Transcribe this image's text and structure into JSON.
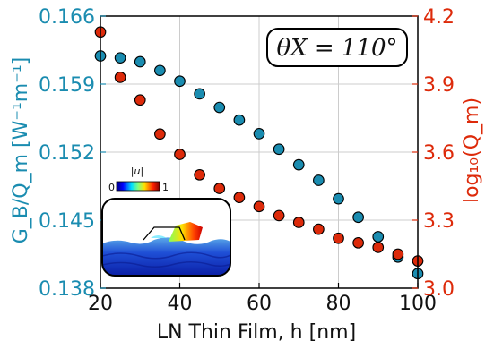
{
  "chart_data": {
    "type": "scatter",
    "xlabel": "LN Thin Film, h [nm]",
    "ylabel_left": "G_B/Q_m [W⁻¹m⁻¹]",
    "ylabel_right": "log₁₀(Q_m)",
    "xlim": [
      20,
      100
    ],
    "ylim_left": [
      0.138,
      0.166
    ],
    "ylim_right": [
      3.0,
      4.2
    ],
    "x_ticks": [
      "20",
      "40",
      "60",
      "80",
      "100"
    ],
    "y_left_ticks": [
      "0.138",
      "0.145",
      "0.152",
      "0.159",
      "0.166"
    ],
    "y_right_ticks": [
      "3.0",
      "3.3",
      "3.6",
      "3.9",
      "4.2"
    ],
    "grid": true,
    "annotation": "θX = 110°",
    "inset": {
      "colorbar_label": "|u|",
      "colorbar_min": "0",
      "colorbar_max": "1"
    },
    "colors": {
      "left_axis": "#1a8cb0",
      "right_axis": "#dd2a0a",
      "grid": "#cccccc"
    },
    "series": [
      {
        "axis": "left",
        "color": "#1a8cb0",
        "x": [
          20,
          25,
          30,
          35,
          40,
          45,
          50,
          55,
          60,
          65,
          70,
          75,
          80,
          85,
          90,
          95,
          100
        ],
        "values": [
          0.1619,
          0.1617,
          0.1613,
          0.1604,
          0.1593,
          0.158,
          0.1566,
          0.1553,
          0.1539,
          0.1523,
          0.1507,
          0.1491,
          0.1472,
          0.1453,
          0.1433,
          0.1412,
          0.1395
        ]
      },
      {
        "axis": "right",
        "color": "#dd2a0a",
        "x": [
          20,
          25,
          30,
          35,
          40,
          45,
          50,
          55,
          60,
          65,
          70,
          75,
          80,
          85,
          90,
          95,
          100
        ],
        "values": [
          4.13,
          3.93,
          3.83,
          3.68,
          3.59,
          3.5,
          3.44,
          3.4,
          3.36,
          3.32,
          3.29,
          3.26,
          3.22,
          3.2,
          3.18,
          3.15,
          3.12
        ]
      }
    ]
  }
}
